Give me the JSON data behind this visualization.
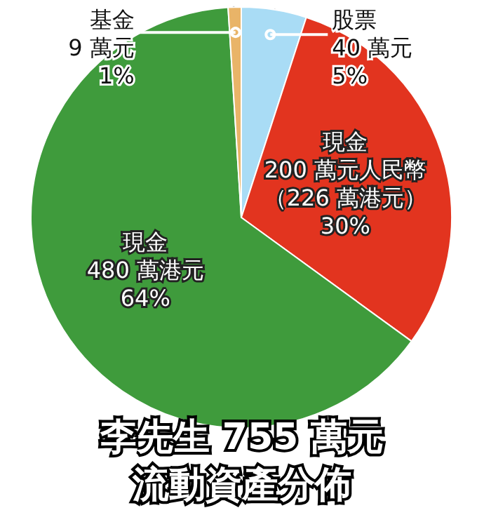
{
  "chart_data": {
    "type": "pie",
    "title": "李先生 755 萬元",
    "subtitle": "流動資產分佈",
    "categories": [
      "股票",
      "現金",
      "現金",
      "基金"
    ],
    "values": [
      5,
      30,
      64,
      1
    ],
    "value_labels": [
      "40 萬元\n5%",
      "200 萬元人民幣（226 萬港元）\n30%",
      "480 萬港元\n64%",
      "9 萬元\n1%"
    ],
    "colors": [
      "#a9dcf5",
      "#e2341f",
      "#3f9b3c",
      "#e9b468"
    ],
    "legend": false
  }
}
